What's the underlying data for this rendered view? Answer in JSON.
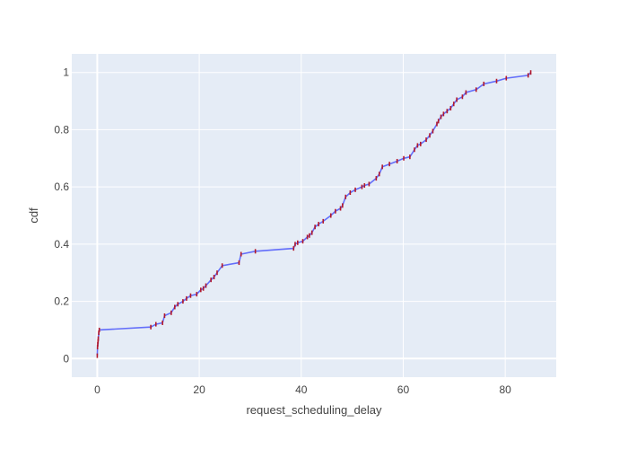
{
  "chart_data": {
    "type": "line",
    "xlabel": "request_scheduling_delay",
    "ylabel": "cdf",
    "xlim": [
      -5,
      90
    ],
    "ylim": [
      -0.065,
      1.065
    ],
    "x_ticks": [
      0,
      20,
      40,
      60,
      80
    ],
    "y_ticks": [
      0,
      0.2,
      0.4,
      0.6,
      0.8,
      1
    ],
    "x_tick_labels": [
      "0",
      "20",
      "40",
      "60",
      "80"
    ],
    "y_tick_labels": [
      "0",
      "0.2",
      "0.4",
      "0.6",
      "0.8",
      "1"
    ],
    "grid": true,
    "plot_background": "#e5ecf6",
    "line_color": "#636efa",
    "marker_color": "#b2182b",
    "series": [
      {
        "values_x": [
          0,
          0.05,
          0.1,
          0.15,
          0.2,
          0.3,
          0.4,
          10.5,
          11.5,
          12.8,
          13.2,
          14.5,
          15.2,
          15.8,
          16.8,
          17.5,
          18.3,
          19.5,
          20.3,
          20.8,
          21.3,
          22.3,
          22.9,
          23.5,
          24.5,
          27.8,
          28.2,
          31,
          38.5,
          38.8,
          39.3,
          40.3,
          41.2,
          41.6,
          42.1,
          42.7,
          43.4,
          44.3,
          45.8,
          46.7,
          47.7,
          48.1,
          48.7,
          49.6,
          50.6,
          51.9,
          52.4,
          53.3,
          54.7,
          55.3,
          55.9,
          57.3,
          58.8,
          60.1,
          61.3,
          62.2,
          62.8,
          63.4,
          64.5,
          65.2,
          65.8,
          66.6,
          66.9,
          67.4,
          67.9,
          68.6,
          69.3,
          69.9,
          70.5,
          71.6,
          72.3,
          74.3,
          75.8,
          78.3,
          80.2,
          84.5,
          85.0
        ],
        "values_y": [
          0.01,
          0.04,
          0.05,
          0.06,
          0.07,
          0.09,
          0.1,
          0.11,
          0.12,
          0.125,
          0.15,
          0.16,
          0.18,
          0.19,
          0.2,
          0.21,
          0.22,
          0.225,
          0.24,
          0.245,
          0.255,
          0.275,
          0.285,
          0.3,
          0.325,
          0.335,
          0.365,
          0.375,
          0.385,
          0.4,
          0.405,
          0.41,
          0.425,
          0.43,
          0.44,
          0.46,
          0.47,
          0.48,
          0.5,
          0.515,
          0.525,
          0.535,
          0.565,
          0.58,
          0.59,
          0.6,
          0.605,
          0.61,
          0.63,
          0.645,
          0.67,
          0.68,
          0.69,
          0.7,
          0.705,
          0.73,
          0.745,
          0.75,
          0.765,
          0.78,
          0.795,
          0.82,
          0.83,
          0.845,
          0.855,
          0.865,
          0.875,
          0.89,
          0.905,
          0.915,
          0.93,
          0.94,
          0.96,
          0.97,
          0.98,
          0.99,
          1.0
        ]
      }
    ]
  }
}
